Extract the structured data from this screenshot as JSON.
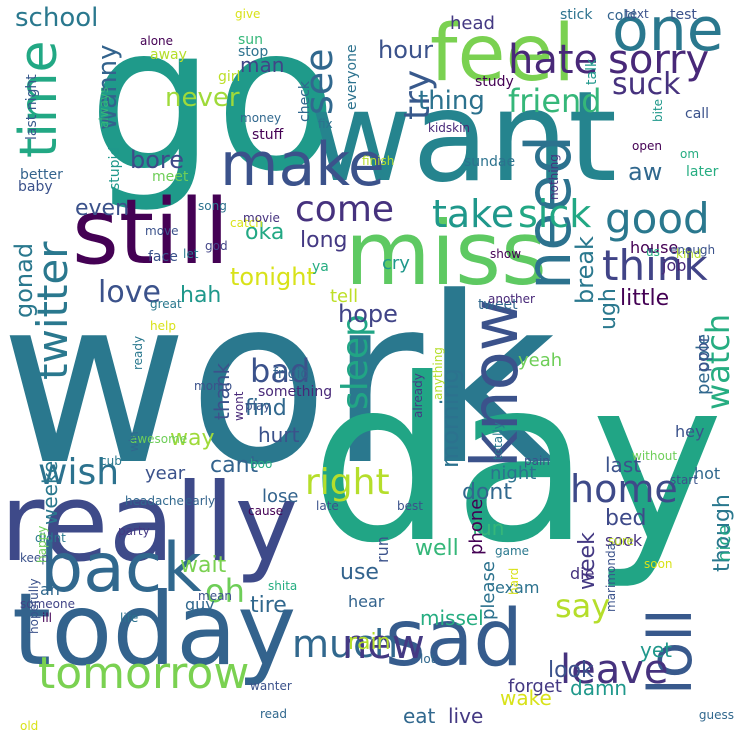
{
  "words": [
    {
      "text": "work",
      "color": "#2a788e",
      "vertical": false
    },
    {
      "text": "go",
      "color": "#1f9a8a",
      "vertical": false
    },
    {
      "text": "day",
      "color": "#21a585",
      "vertical": false
    },
    {
      "text": "want",
      "color": "#25848e",
      "vertical": false
    },
    {
      "text": "really",
      "color": "#3e4a89",
      "vertical": false
    },
    {
      "text": "today",
      "color": "#33638d",
      "vertical": false
    },
    {
      "text": "miss",
      "color": "#5ec962",
      "vertical": false
    },
    {
      "text": "still",
      "color": "#440154",
      "vertical": false
    },
    {
      "text": "feel",
      "color": "#7ad151",
      "vertical": false
    },
    {
      "text": "sad",
      "color": "#365c8d",
      "vertical": false
    },
    {
      "text": "one",
      "color": "#2a788e",
      "vertical": false
    },
    {
      "text": "make",
      "color": "#3b528b",
      "vertical": false
    },
    {
      "text": "back",
      "color": "#31688e",
      "vertical": false
    },
    {
      "text": "time",
      "color": "#22a884",
      "vertical": true
    },
    {
      "text": "know",
      "color": "#3b528b",
      "vertical": true
    },
    {
      "text": "need",
      "color": "#2c728e",
      "vertical": true
    },
    {
      "text": "loll",
      "color": "#38598c",
      "vertical": true
    },
    {
      "text": "tomorrow",
      "color": "#7ad151",
      "vertical": false
    },
    {
      "text": "think",
      "color": "#414487",
      "vertical": false
    },
    {
      "text": "sick",
      "color": "#22a884",
      "vertical": false
    },
    {
      "text": "take",
      "color": "#1f988b",
      "vertical": false
    },
    {
      "text": "good",
      "color": "#2a788e",
      "vertical": false
    },
    {
      "text": "come",
      "color": "#46327e",
      "vertical": false
    },
    {
      "text": "twitter",
      "color": "#2a788e",
      "vertical": true
    },
    {
      "text": "friend",
      "color": "#35b779",
      "vertical": false
    },
    {
      "text": "sorry",
      "color": "#482878",
      "vertical": false
    },
    {
      "text": "hate",
      "color": "#482878",
      "vertical": false
    },
    {
      "text": "home",
      "color": "#3e4a89",
      "vertical": false
    },
    {
      "text": "wish",
      "color": "#2c728e",
      "vertical": false
    },
    {
      "text": "right",
      "color": "#b5de2b",
      "vertical": false
    },
    {
      "text": "much",
      "color": "#31688e",
      "vertical": false
    },
    {
      "text": "leave",
      "color": "#46327e",
      "vertical": false
    },
    {
      "text": "new",
      "color": "#443983",
      "vertical": false
    },
    {
      "text": "oh",
      "color": "#6ece58",
      "vertical": false
    },
    {
      "text": "say",
      "color": "#b5de2b",
      "vertical": false
    },
    {
      "text": "bad",
      "color": "#3b528b",
      "vertical": false
    },
    {
      "text": "love",
      "color": "#3b528b",
      "vertical": false
    },
    {
      "text": "try",
      "color": "#38598c",
      "vertical": true
    },
    {
      "text": "see",
      "color": "#31688e",
      "vertical": true
    },
    {
      "text": "sleep",
      "color": "#21a585",
      "vertical": true
    },
    {
      "text": "watch",
      "color": "#26ad81",
      "vertical": true
    },
    {
      "text": "suck",
      "color": "#46327e",
      "vertical": false
    },
    {
      "text": "thing",
      "color": "#2c728e",
      "vertical": false
    },
    {
      "text": "never",
      "color": "#9fda3a",
      "vertical": false
    },
    {
      "text": "hour",
      "color": "#3b528b",
      "vertical": false
    },
    {
      "text": "school",
      "color": "#2a788e",
      "vertical": false
    },
    {
      "text": "bore",
      "color": "#3e4a89",
      "vertical": false
    },
    {
      "text": "aw",
      "color": "#31688e",
      "vertical": false
    },
    {
      "text": "even",
      "color": "#3b528b",
      "vertical": false
    },
    {
      "text": "tonight",
      "color": "#d8e219",
      "vertical": false
    },
    {
      "text": "hope",
      "color": "#414487",
      "vertical": false
    },
    {
      "text": "find",
      "color": "#31688e",
      "vertical": false
    },
    {
      "text": "morning",
      "color": "#2c728e",
      "vertical": true
    },
    {
      "text": "break",
      "color": "#2a788e",
      "vertical": true
    },
    {
      "text": "wanny",
      "color": "#33638d",
      "vertical": true
    },
    {
      "text": "hah",
      "color": "#1f988b",
      "vertical": false
    },
    {
      "text": "long",
      "color": "#443983",
      "vertical": false
    },
    {
      "text": "oka",
      "color": "#22a884",
      "vertical": false
    },
    {
      "text": "gonad",
      "color": "#2a788e",
      "vertical": true
    },
    {
      "text": "way",
      "color": "#9fda3a",
      "vertical": false
    },
    {
      "text": "cant",
      "color": "#33638d",
      "vertical": false
    },
    {
      "text": "last",
      "color": "#3b528b",
      "vertical": false
    },
    {
      "text": "wait",
      "color": "#7ad151",
      "vertical": false
    },
    {
      "text": "fun",
      "color": "#35b779",
      "vertical": false
    },
    {
      "text": "bed",
      "color": "#3e4a89",
      "vertical": false
    },
    {
      "text": "well",
      "color": "#35b779",
      "vertical": false
    },
    {
      "text": "tire",
      "color": "#31688e",
      "vertical": false
    },
    {
      "text": "use",
      "color": "#33638d",
      "vertical": false
    },
    {
      "text": "look",
      "color": "#3b528b",
      "vertical": false
    },
    {
      "text": "rain",
      "color": "#b5de2b",
      "vertical": false
    },
    {
      "text": "dont",
      "color": "#31688e",
      "vertical": false
    },
    {
      "text": "missel",
      "color": "#26ad81",
      "vertical": false
    },
    {
      "text": "though",
      "color": "#2a788e",
      "vertical": true
    },
    {
      "text": "week",
      "color": "#443983",
      "vertical": true
    },
    {
      "text": "ugh",
      "color": "#2a788e",
      "vertical": true
    },
    {
      "text": "yeah",
      "color": "#6ece58",
      "vertical": false
    },
    {
      "text": "little",
      "color": "#440154",
      "vertical": false
    },
    {
      "text": "people",
      "color": "#31688e",
      "vertical": true
    },
    {
      "text": "yet",
      "color": "#1f988b",
      "vertical": false
    },
    {
      "text": "wake",
      "color": "#d8e219",
      "vertical": false
    },
    {
      "text": "live",
      "color": "#443983",
      "vertical": false
    },
    {
      "text": "eat",
      "color": "#31688e",
      "vertical": false
    },
    {
      "text": "damn",
      "color": "#1f988b",
      "vertical": false
    },
    {
      "text": "forget",
      "color": "#443983",
      "vertical": false
    },
    {
      "text": "nice",
      "color": "#21a585",
      "vertical": true
    },
    {
      "text": "please",
      "color": "#2c728e",
      "vertical": true
    },
    {
      "text": "phone",
      "color": "#440154",
      "vertical": true
    },
    {
      "text": "thank",
      "color": "#3b528b",
      "vertical": true
    },
    {
      "text": "weekend",
      "color": "#2a788e",
      "vertical": true
    },
    {
      "text": "head",
      "color": "#443983",
      "vertical": false
    },
    {
      "text": "man",
      "color": "#414487",
      "vertical": false
    },
    {
      "text": "hurt",
      "color": "#3b528b",
      "vertical": false
    },
    {
      "text": "year",
      "color": "#3b528b",
      "vertical": false
    },
    {
      "text": "lose",
      "color": "#33638d",
      "vertical": false
    },
    {
      "text": "night",
      "color": "#2c728e",
      "vertical": false
    },
    {
      "text": "tell",
      "color": "#bddf26",
      "vertical": false
    },
    {
      "text": "cry",
      "color": "#1f988b",
      "vertical": false
    },
    {
      "text": "house",
      "color": "#440154",
      "vertical": false
    },
    {
      "text": "job",
      "color": "#482878",
      "vertical": false
    },
    {
      "text": "poor",
      "color": "#3b528b",
      "vertical": true
    },
    {
      "text": "hey",
      "color": "#3b528b",
      "vertical": false
    },
    {
      "text": "hot",
      "color": "#31688e",
      "vertical": false
    },
    {
      "text": "sook",
      "color": "#46327e",
      "vertical": false
    },
    {
      "text": "die",
      "color": "#46327e",
      "vertical": false
    },
    {
      "text": "ah",
      "color": "#31688e",
      "vertical": false
    },
    {
      "text": "guy",
      "color": "#31688e",
      "vertical": false
    },
    {
      "text": "exam",
      "color": "#2c728e",
      "vertical": false
    },
    {
      "text": "hear",
      "color": "#33638d",
      "vertical": false
    },
    {
      "text": "run",
      "color": "#3b528b",
      "vertical": true
    },
    {
      "text": "stupid",
      "color": "#1f988b",
      "vertical": true
    },
    {
      "text": "stick",
      "color": "#2c728e",
      "vertical": false
    },
    {
      "text": "cold",
      "color": "#33638d",
      "vertical": false
    },
    {
      "text": "text",
      "color": "#3b528b",
      "vertical": false
    },
    {
      "text": "test",
      "color": "#3b528b",
      "vertical": false
    },
    {
      "text": "give",
      "color": "#d8e219",
      "vertical": false
    },
    {
      "text": "alone",
      "color": "#440154",
      "vertical": false
    },
    {
      "text": "sun",
      "color": "#35b779",
      "vertical": false
    },
    {
      "text": "stop",
      "color": "#2c728e",
      "vertical": false
    },
    {
      "text": "away",
      "color": "#b5de2b",
      "vertical": false
    },
    {
      "text": "girl",
      "color": "#bddf26",
      "vertical": false
    },
    {
      "text": "study",
      "color": "#440154",
      "vertical": false
    },
    {
      "text": "talk",
      "color": "#1f988b",
      "vertical": true
    },
    {
      "text": "everyone",
      "color": "#2c728e",
      "vertical": true
    },
    {
      "text": "check",
      "color": "#31688e",
      "vertical": true
    },
    {
      "text": "last night",
      "color": "#38598c",
      "vertical": true
    },
    {
      "text": "baby",
      "color": "#3b528b",
      "vertical": false
    },
    {
      "text": "always",
      "color": "#35b779",
      "vertical": true
    },
    {
      "text": "money",
      "color": "#31688e",
      "vertical": false
    },
    {
      "text": "fix",
      "color": "#2c728e",
      "vertical": false
    },
    {
      "text": "kidskin",
      "color": "#482878",
      "vertical": false
    },
    {
      "text": "bite",
      "color": "#1f988b",
      "vertical": true
    },
    {
      "text": "call",
      "color": "#3b528b",
      "vertical": false
    },
    {
      "text": "stuff",
      "color": "#440154",
      "vertical": false
    },
    {
      "text": "finish",
      "color": "#b5de2b",
      "vertical": false
    },
    {
      "text": "meet",
      "color": "#6ece58",
      "vertical": false
    },
    {
      "text": "better",
      "color": "#33638d",
      "vertical": false
    },
    {
      "text": "sundae",
      "color": "#2c728e",
      "vertical": false
    },
    {
      "text": "nothing",
      "color": "#46327e",
      "vertical": true
    },
    {
      "text": "open",
      "color": "#440154",
      "vertical": false
    },
    {
      "text": "om",
      "color": "#26ad81",
      "vertical": false
    },
    {
      "text": "later",
      "color": "#26ad81",
      "vertical": false
    },
    {
      "text": "move",
      "color": "#3b528b",
      "vertical": false
    },
    {
      "text": "song",
      "color": "#2c728e",
      "vertical": false
    },
    {
      "text": "catch",
      "color": "#d8e219",
      "vertical": false
    },
    {
      "text": "movie",
      "color": "#46327e",
      "vertical": false
    },
    {
      "text": "god",
      "color": "#414487",
      "vertical": false
    },
    {
      "text": "let",
      "color": "#2a788e",
      "vertical": false
    },
    {
      "text": "face",
      "color": "#3b528b",
      "vertical": false
    },
    {
      "text": "show",
      "color": "#440154",
      "vertical": false
    },
    {
      "text": "ya",
      "color": "#26ad81",
      "vertical": false
    },
    {
      "text": "kind",
      "color": "#b5de2b",
      "vertical": false
    },
    {
      "text": "us",
      "color": "#26ad81",
      "vertical": false
    },
    {
      "text": "enough",
      "color": "#3b528b",
      "vertical": false
    },
    {
      "text": "tweet",
      "color": "#31688e",
      "vertical": false
    },
    {
      "text": "another",
      "color": "#482878",
      "vertical": false
    },
    {
      "text": "great",
      "color": "#2a788e",
      "vertical": false
    },
    {
      "text": "help",
      "color": "#d8e219",
      "vertical": false
    },
    {
      "text": "ready",
      "color": "#2a788e",
      "vertical": true
    },
    {
      "text": "frigid",
      "color": "#33638d",
      "vertical": false
    },
    {
      "text": "something",
      "color": "#482878",
      "vertical": false
    },
    {
      "text": "momo",
      "color": "#3b528b",
      "vertical": false
    },
    {
      "text": "play",
      "color": "#3b528b",
      "vertical": false
    },
    {
      "text": "wont",
      "color": "#482878",
      "vertical": true
    },
    {
      "text": "awesome",
      "color": "#6ece58",
      "vertical": false
    },
    {
      "text": "win",
      "color": "#31688e",
      "vertical": true
    },
    {
      "text": "already",
      "color": "#443983",
      "vertical": true
    },
    {
      "text": "anything",
      "color": "#b5de2b",
      "vertical": true
    },
    {
      "text": "totally",
      "color": "#2a788e",
      "vertical": true
    },
    {
      "text": "pain",
      "color": "#3b528b",
      "vertical": false
    },
    {
      "text": "without",
      "color": "#6ece58",
      "vertical": false
    },
    {
      "text": "start",
      "color": "#3b528b",
      "vertical": false
    },
    {
      "text": "cub",
      "color": "#2a788e",
      "vertical": false
    },
    {
      "text": "boo",
      "color": "#26ad81",
      "vertical": false
    },
    {
      "text": "early",
      "color": "#33638d",
      "vertical": false
    },
    {
      "text": "headache",
      "color": "#31688e",
      "vertical": false
    },
    {
      "text": "party",
      "color": "#443983",
      "vertical": false
    },
    {
      "text": "cause",
      "color": "#440154",
      "vertical": false
    },
    {
      "text": "late",
      "color": "#3b528b",
      "vertical": false
    },
    {
      "text": "best",
      "color": "#3b528b",
      "vertical": false
    },
    {
      "text": "didnt",
      "color": "#2a788e",
      "vertical": false
    },
    {
      "text": "keep",
      "color": "#3b528b",
      "vertical": false
    },
    {
      "text": "happy",
      "color": "#6ece58",
      "vertical": true
    },
    {
      "text": "game",
      "color": "#2a788e",
      "vertical": false
    },
    {
      "text": "hard",
      "color": "#d8e219",
      "vertical": true
    },
    {
      "text": "sure",
      "color": "#bddf26",
      "vertical": false
    },
    {
      "text": "soon",
      "color": "#d8e219",
      "vertical": false
    },
    {
      "text": "someone",
      "color": "#414487",
      "vertical": false
    },
    {
      "text": "mean",
      "color": "#3b528b",
      "vertical": false
    },
    {
      "text": "shita",
      "color": "#26ad81",
      "vertical": false
    },
    {
      "text": "ill",
      "color": "#440154",
      "vertical": false
    },
    {
      "text": "life",
      "color": "#2c728e",
      "vertical": false
    },
    {
      "text": "marimonda",
      "color": "#3b528b",
      "vertical": true
    },
    {
      "text": "hopefully",
      "color": "#3b528b",
      "vertical": true
    },
    {
      "text": "lot",
      "color": "#31688e",
      "vertical": false
    },
    {
      "text": "guess",
      "color": "#31688e",
      "vertical": false
    },
    {
      "text": "old",
      "color": "#d8e219",
      "vertical": false
    },
    {
      "text": "wanter",
      "color": "#3b528b",
      "vertical": false
    },
    {
      "text": "read",
      "color": "#31688e",
      "vertical": false
    }
  ]
}
